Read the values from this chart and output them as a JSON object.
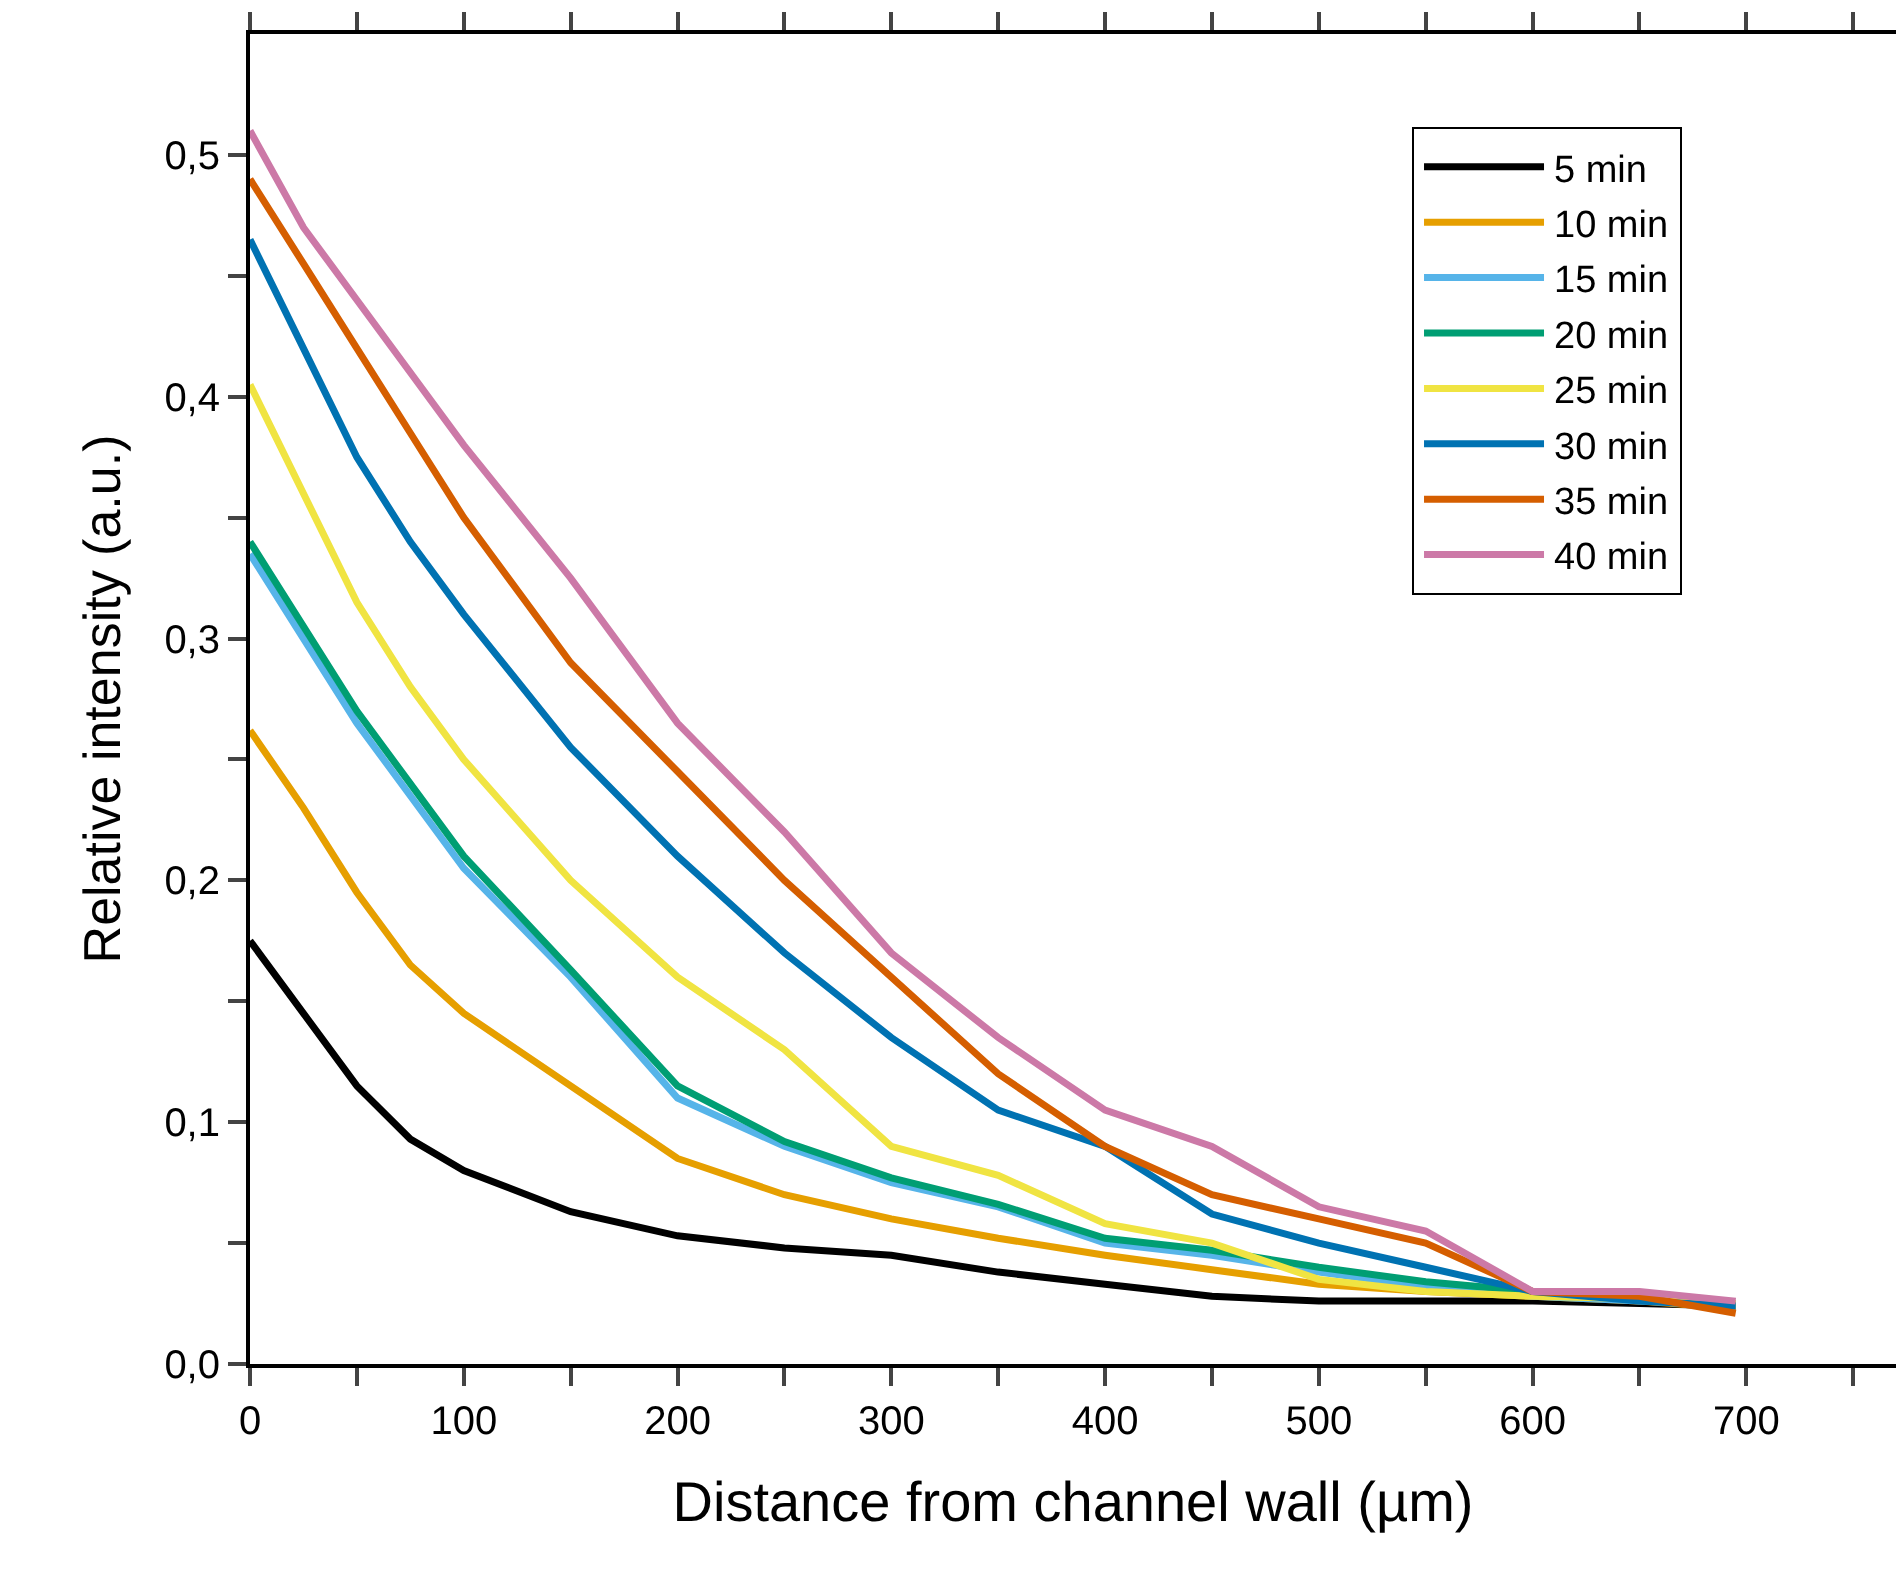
{
  "chart_data": {
    "type": "line",
    "xlabel": "Distance from channel wall (µm)",
    "ylabel": "Relative intensity (a.u.)",
    "x": [
      0,
      25,
      50,
      75,
      100,
      150,
      200,
      250,
      300,
      350,
      400,
      450,
      500,
      550,
      600,
      650,
      695
    ],
    "series": [
      {
        "name": "5 min",
        "color": "#000000",
        "values": [
          0.175,
          0.145,
          0.115,
          0.093,
          0.08,
          0.063,
          0.053,
          0.048,
          0.045,
          0.038,
          0.033,
          0.028,
          0.026,
          0.026,
          0.026,
          0.025,
          0.024
        ]
      },
      {
        "name": "10 min",
        "color": "#e69f00",
        "values": [
          0.262,
          0.23,
          0.195,
          0.165,
          0.145,
          0.115,
          0.085,
          0.07,
          0.06,
          0.052,
          0.045,
          0.039,
          0.033,
          0.03,
          0.028,
          0.026,
          0.023
        ]
      },
      {
        "name": "15 min",
        "color": "#56b4e9",
        "values": [
          0.335,
          0.3,
          0.265,
          0.235,
          0.205,
          0.16,
          0.11,
          0.09,
          0.075,
          0.065,
          0.05,
          0.045,
          0.038,
          0.032,
          0.028,
          0.026,
          0.024
        ]
      },
      {
        "name": "20 min",
        "color": "#009e73",
        "values": [
          0.34,
          0.305,
          0.27,
          0.24,
          0.21,
          0.163,
          0.115,
          0.092,
          0.077,
          0.066,
          0.052,
          0.047,
          0.04,
          0.034,
          0.03,
          0.027,
          0.025
        ]
      },
      {
        "name": "25 min",
        "color": "#f0e442",
        "values": [
          0.405,
          0.36,
          0.315,
          0.28,
          0.25,
          0.2,
          0.16,
          0.13,
          0.09,
          0.078,
          0.058,
          0.05,
          0.035,
          0.03,
          0.028,
          0.027,
          0.025
        ]
      },
      {
        "name": "30 min",
        "color": "#0072b2",
        "values": [
          0.465,
          0.42,
          0.375,
          0.34,
          0.31,
          0.255,
          0.21,
          0.17,
          0.135,
          0.105,
          0.09,
          0.062,
          0.05,
          0.04,
          0.03,
          0.026,
          0.024
        ]
      },
      {
        "name": "35 min",
        "color": "#d55e00",
        "values": [
          0.49,
          0.455,
          0.42,
          0.385,
          0.35,
          0.29,
          0.245,
          0.2,
          0.16,
          0.12,
          0.09,
          0.07,
          0.06,
          0.05,
          0.03,
          0.028,
          0.021
        ]
      },
      {
        "name": "40 min",
        "color": "#cc79a7",
        "values": [
          0.51,
          0.47,
          0.44,
          0.41,
          0.38,
          0.325,
          0.265,
          0.22,
          0.17,
          0.135,
          0.105,
          0.09,
          0.065,
          0.055,
          0.03,
          0.03,
          0.026
        ]
      }
    ],
    "xlim": [
      0,
      770
    ],
    "ylim": [
      0,
      0.55
    ],
    "xticks": [
      0,
      {
        "value": 50,
        "label": null
      },
      100,
      {
        "value": 150,
        "label": null
      },
      200,
      {
        "value": 250,
        "label": null
      },
      300,
      {
        "value": 350,
        "label": null
      },
      400,
      {
        "value": 450,
        "label": null
      },
      500,
      {
        "value": 550,
        "label": null
      },
      600,
      {
        "value": 650,
        "label": null
      },
      700,
      {
        "value": 750,
        "label": null
      }
    ],
    "yticks": [
      {
        "value": 0,
        "label": "0,0"
      },
      {
        "value": 0.05,
        "label": null
      },
      {
        "value": 0.1,
        "label": "0,1"
      },
      {
        "value": 0.15,
        "label": null
      },
      {
        "value": 0.2,
        "label": "0,2"
      },
      {
        "value": 0.25,
        "label": null
      },
      {
        "value": 0.3,
        "label": "0,3"
      },
      {
        "value": 0.35,
        "label": null
      },
      {
        "value": 0.4,
        "label": "0,4"
      },
      {
        "value": 0.45,
        "label": null
      },
      {
        "value": 0.5,
        "label": "0,5"
      }
    ],
    "legend": "top right",
    "marker": "none",
    "line_style": "solid"
  }
}
